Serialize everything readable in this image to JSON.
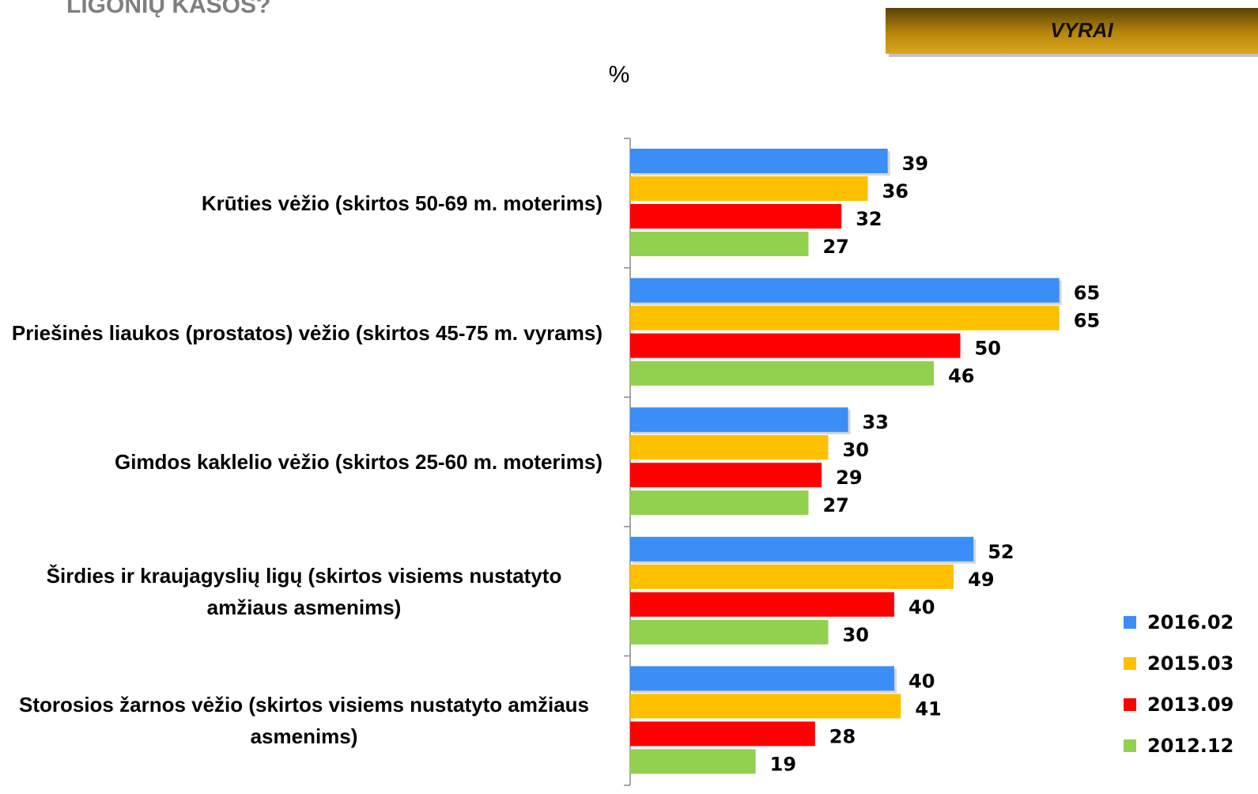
{
  "title": "LIGONIŲ KASOS?",
  "badge": "VYRAI",
  "chart_data": {
    "type": "hbar",
    "axis_label": "%",
    "categories": [
      "Krūties vėžio (skirtos 50-69 m. moterims)",
      "Priešinės liaukos (prostatos) vėžio (skirtos 45-75 m. vyrams)",
      "Gimdos kaklelio vėžio (skirtos 25-60 m. moterims)",
      "Širdies ir kraujagyslių ligų (skirtos visiems nustatyto amžiaus asmenims)",
      "Storosios žarnos vėžio (skirtos visiems nustatyto amžiaus asmenims)"
    ],
    "series": [
      {
        "name": "2016.02",
        "color": "#3a8ef5",
        "values": [
          39,
          65,
          33,
          52,
          40
        ]
      },
      {
        "name": "2015.03",
        "color": "#ffc000",
        "values": [
          36,
          65,
          30,
          49,
          41
        ]
      },
      {
        "name": "2013.09",
        "color": "#ff0000",
        "values": [
          32,
          50,
          29,
          40,
          28
        ]
      },
      {
        "name": "2012.12",
        "color": "#92d050",
        "values": [
          27,
          46,
          27,
          30,
          19
        ]
      }
    ],
    "legend": "right"
  }
}
